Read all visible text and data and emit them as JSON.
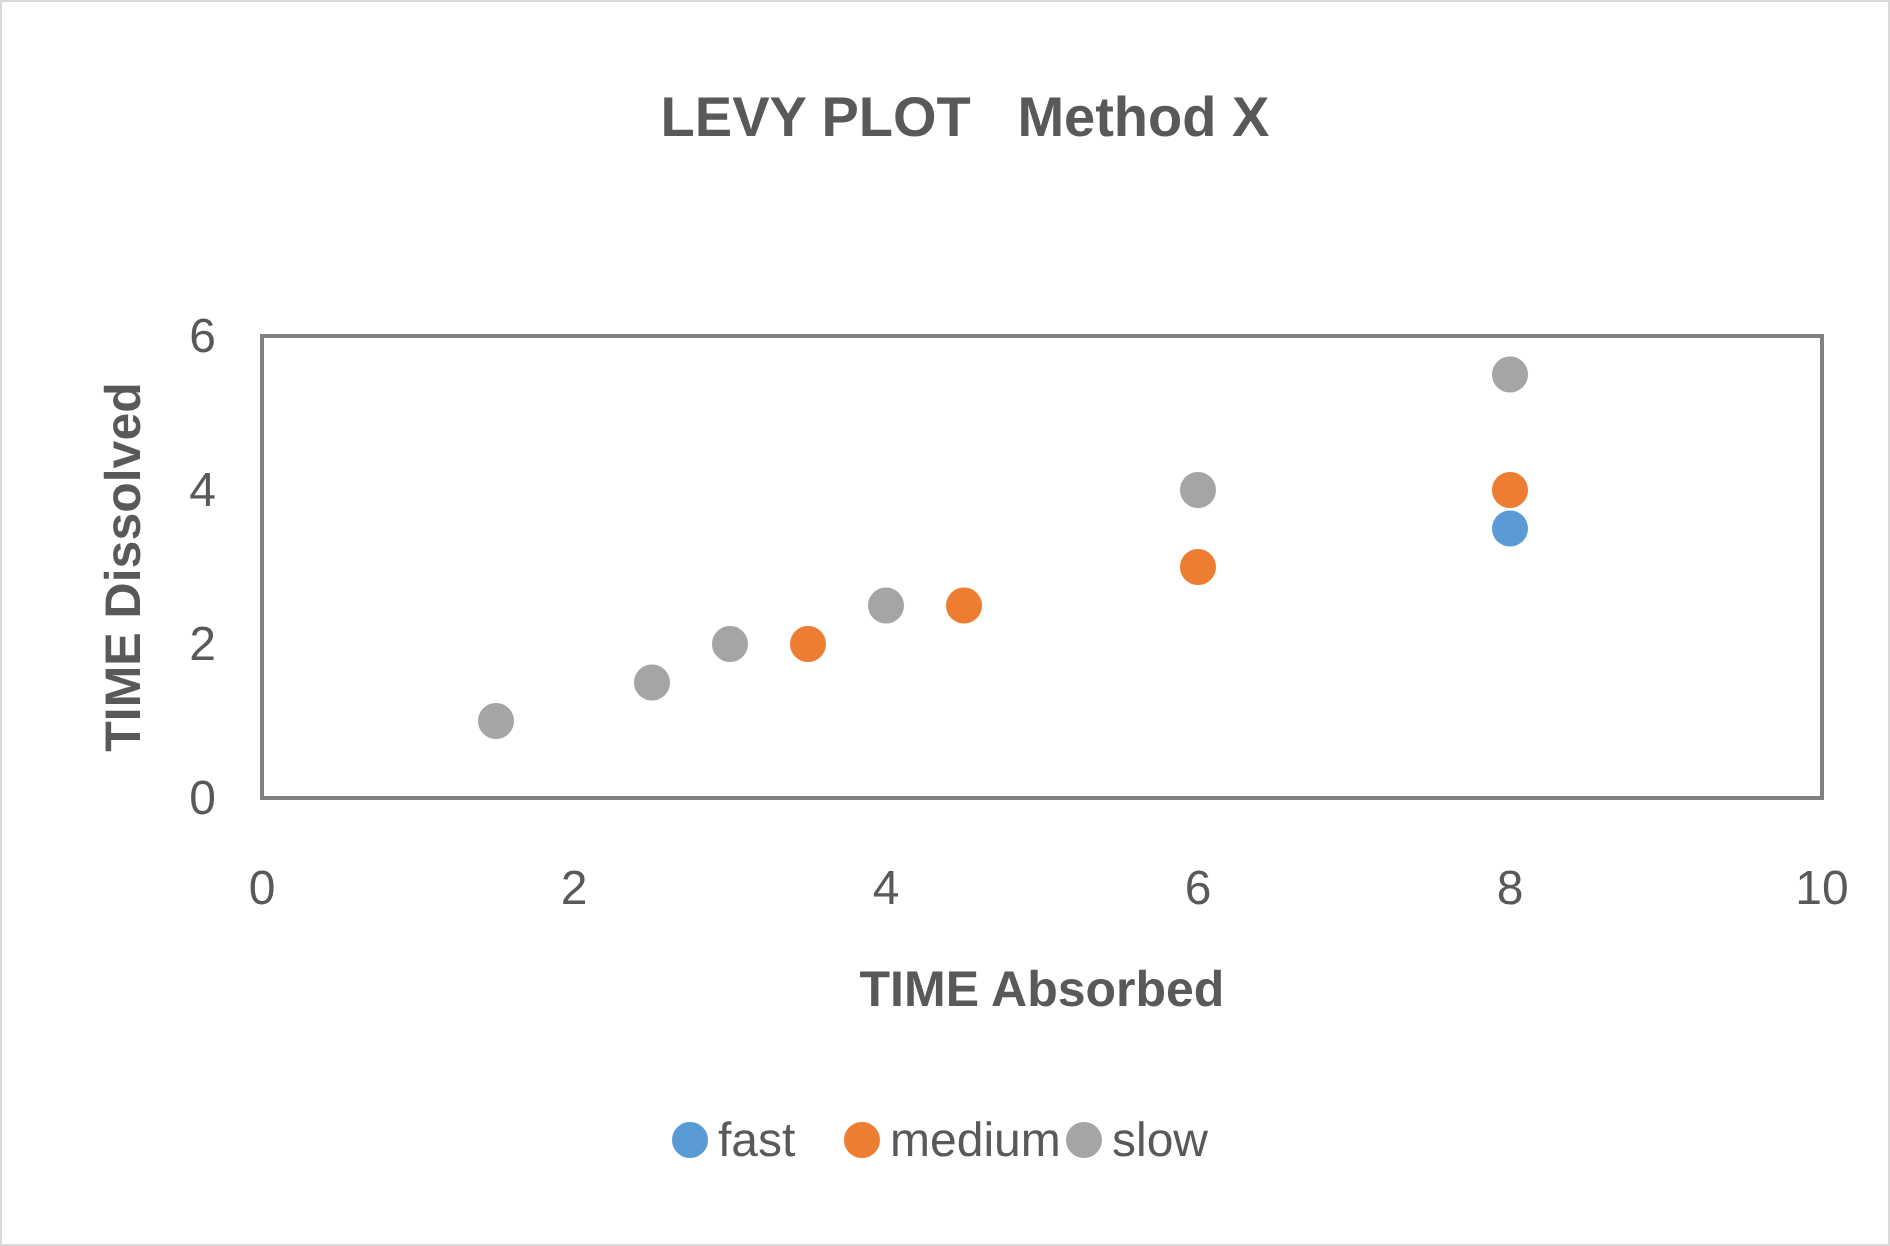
{
  "chart_data": {
    "type": "scatter",
    "title": "LEVY PLOT   Method X",
    "xlabel": "TIME Absorbed",
    "ylabel": "TIME Dissolved",
    "xlim": [
      0,
      10
    ],
    "xticks": [
      0,
      2,
      4,
      6,
      8,
      10
    ],
    "ylim": [
      0,
      6
    ],
    "yticks": [
      0,
      2,
      4,
      6
    ],
    "grid": false,
    "legend": "bottom",
    "marker": "circle",
    "series": [
      {
        "name": "fast",
        "color": "#5b9bd5",
        "x": [
          8
        ],
        "values": [
          3.5
        ]
      },
      {
        "name": "medium",
        "color": "#ed7d31",
        "x": [
          3.5,
          4.5,
          6,
          8
        ],
        "values": [
          2,
          2.5,
          3,
          4
        ]
      },
      {
        "name": "slow",
        "color": "#a5a5a5",
        "x": [
          1.5,
          2.5,
          3,
          4,
          6,
          8
        ],
        "values": [
          1,
          1.5,
          2,
          2.5,
          4,
          5.5
        ]
      }
    ]
  }
}
